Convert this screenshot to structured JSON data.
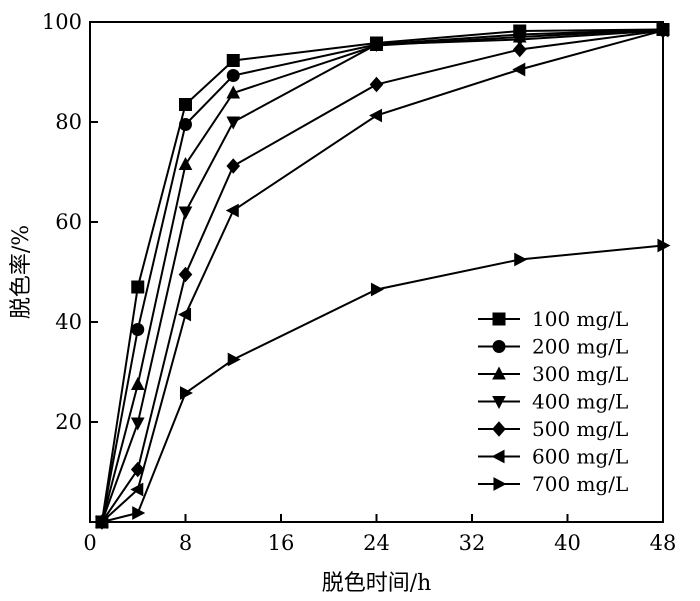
{
  "chart_data": {
    "type": "line",
    "title": "",
    "xlabel": "脱色时间/h",
    "ylabel": "脱色率/%",
    "xlim": [
      0,
      48
    ],
    "ylim": [
      0,
      100
    ],
    "xticks": [
      0,
      8,
      16,
      24,
      32,
      40,
      48
    ],
    "yticks": [
      20,
      40,
      60,
      80,
      100
    ],
    "grid": false,
    "legend_position": "bottom-right",
    "series": [
      {
        "name": "100 mg/L",
        "marker": "square",
        "x": [
          1,
          4,
          8,
          12,
          24,
          36,
          48
        ],
        "y": [
          0,
          47,
          83.5,
          92.3,
          95.8,
          98.2,
          98.5
        ]
      },
      {
        "name": "200 mg/L",
        "marker": "circle",
        "x": [
          1,
          4,
          8,
          12,
          24,
          36,
          48
        ],
        "y": [
          0,
          38.5,
          79.5,
          89.3,
          95.5,
          97.5,
          98.5
        ]
      },
      {
        "name": "300 mg/L",
        "marker": "triangle-up",
        "x": [
          1,
          4,
          8,
          12,
          24,
          36,
          48
        ],
        "y": [
          0,
          27.5,
          71.5,
          85.8,
          95.3,
          97,
          98.5
        ]
      },
      {
        "name": "400 mg/L",
        "marker": "triangle-down",
        "x": [
          1,
          4,
          8,
          12,
          24,
          36,
          48
        ],
        "y": [
          0,
          19.8,
          62,
          80,
          95.5,
          96.5,
          98.3
        ]
      },
      {
        "name": "500 mg/L",
        "marker": "diamond",
        "x": [
          1,
          4,
          8,
          12,
          24,
          36,
          48
        ],
        "y": [
          0,
          10.5,
          49.5,
          71.2,
          87.5,
          94.5,
          98.3
        ]
      },
      {
        "name": "600 mg/L",
        "marker": "triangle-left",
        "x": [
          1,
          4,
          8,
          12,
          24,
          36,
          48
        ],
        "y": [
          0,
          6.5,
          41.5,
          62.3,
          81.3,
          90.5,
          98.3
        ]
      },
      {
        "name": "700 mg/L",
        "marker": "triangle-right",
        "x": [
          1,
          4,
          8,
          12,
          24,
          36,
          48
        ],
        "y": [
          0,
          1.8,
          25.8,
          32.5,
          46.5,
          52.5,
          55.3
        ]
      }
    ]
  }
}
